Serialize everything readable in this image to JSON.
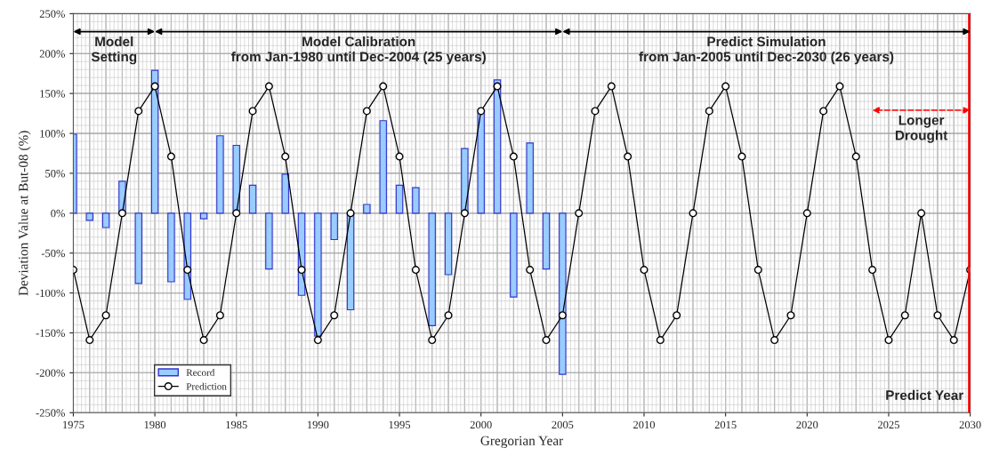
{
  "chart_data": {
    "type": "bar",
    "xlabel": "Gregorian Year",
    "ylabel": "Deviation Value at But-08 (%)",
    "x": [
      1975,
      1976,
      1977,
      1978,
      1979,
      1980,
      1981,
      1982,
      1983,
      1984,
      1985,
      1986,
      1987,
      1988,
      1989,
      1990,
      1991,
      1992,
      1993,
      1994,
      1995,
      1996,
      1997,
      1998,
      1999,
      2000,
      2001,
      2002,
      2003,
      2004,
      2005
    ],
    "series": [
      {
        "name": "Record",
        "color": "#99ccff",
        "values": [
          99,
          -9,
          -18,
          40,
          -88,
          179,
          -86,
          -108,
          -7,
          97,
          85,
          35,
          -70,
          49,
          -103,
          -154,
          -33,
          -121,
          11,
          116,
          35,
          32,
          -141,
          -77,
          81,
          125,
          167,
          -105,
          88,
          -70,
          -202
        ]
      },
      {
        "name": "Prediction",
        "type": "line",
        "color": "#000000",
        "marker": "circle",
        "x": [
          1975,
          1976,
          1977,
          1978,
          1979,
          1980,
          1981,
          1982,
          1983,
          1984,
          1985,
          1986,
          1987,
          1988,
          1989,
          1990,
          1991,
          1992,
          1993,
          1994,
          1995,
          1996,
          1997,
          1998,
          1999,
          2000,
          2001,
          2002,
          2003,
          2004,
          2005,
          2006,
          2007,
          2008,
          2009,
          2010,
          2011,
          2012,
          2013,
          2014,
          2015,
          2016,
          2017,
          2018,
          2019,
          2020,
          2021,
          2022,
          2023,
          2024,
          2025,
          2026,
          2027,
          2028,
          2029,
          2030
        ],
        "values": [
          -71,
          -159,
          -128,
          0,
          128,
          159,
          71,
          -71,
          -159,
          -128,
          0,
          128,
          159,
          71,
          -71,
          -159,
          -128,
          0,
          128,
          159,
          71,
          -71,
          -159,
          -128,
          0,
          128,
          159,
          71,
          -71,
          -159,
          -128,
          0,
          128,
          159,
          71,
          -71,
          -159,
          -128,
          0,
          128,
          159,
          71,
          -71,
          -159,
          -128,
          0,
          128,
          159,
          71,
          -71,
          -159,
          -128,
          0,
          -128,
          -159,
          -71
        ]
      }
    ],
    "xlim": [
      1975,
      2030
    ],
    "xticks": [
      1975,
      1980,
      1985,
      1990,
      1995,
      2000,
      2005,
      2010,
      2015,
      2020,
      2025,
      2030
    ],
    "ylim": [
      -250,
      250
    ],
    "yticks": [
      {
        "value": -250,
        "label": "-250%"
      },
      {
        "value": -200,
        "label": "-200%"
      },
      {
        "value": -150,
        "label": "-150%"
      },
      {
        "value": -100,
        "label": "-100%"
      },
      {
        "value": -50,
        "label": "-50%"
      },
      {
        "value": 0,
        "label": "0%"
      },
      {
        "value": 50,
        "label": "50%"
      },
      {
        "value": 100,
        "label": "100%"
      },
      {
        "value": 150,
        "label": "150%"
      },
      {
        "value": 200,
        "label": "200%"
      },
      {
        "value": 250,
        "label": "250%"
      }
    ],
    "grid": true,
    "legend": "bottom left",
    "ref_lines": [
      {
        "axis": "x",
        "value": 2030,
        "label": "Predict Year",
        "color": "#ff0000"
      }
    ],
    "annotations": [
      "Model\nSetting",
      "Model Calibration\nfrom Jan-1980 until Dec-2004 (25 years)",
      "Predict Simulation\nfrom Jan-2005 until Dec-2030 (26 years)",
      "Longer\nDrought"
    ]
  }
}
